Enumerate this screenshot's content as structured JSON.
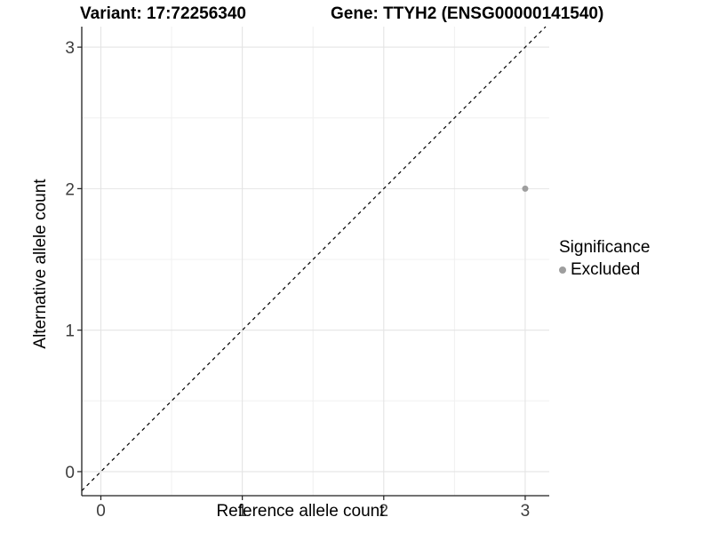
{
  "chart_data": {
    "type": "scatter",
    "titles": [
      "Variant: 17:72256340",
      "Gene: TTYH2 (ENSG00000141540)"
    ],
    "xlabel": "Reference allele count",
    "ylabel": "Alternative allele count",
    "xlim": [
      -0.135,
      3.17
    ],
    "ylim": [
      -0.17,
      3.145
    ],
    "x_ticks": [
      0,
      1,
      2,
      3
    ],
    "y_ticks": [
      0,
      1,
      2,
      3
    ],
    "x_minor_ticks": [
      0.5,
      1.5,
      2.5
    ],
    "y_minor_ticks": [
      0.5,
      1.5,
      2.5
    ],
    "grid": "major+minor",
    "points": [
      {
        "x": 3,
        "y": 2,
        "series": "Excluded"
      }
    ],
    "identity_line": {
      "slope": 1,
      "intercept": 0,
      "linetype": "dashed",
      "color": "#000000"
    },
    "legend": {
      "title": "Significance",
      "position": "right",
      "entries": [
        {
          "label": "Excluded",
          "color": "#9e9e9e"
        }
      ]
    },
    "style": {
      "background": "#ffffff",
      "point_color": "#9e9e9e",
      "axis_color": "#1f1f1f",
      "grid_major_color": "#e4e4e4",
      "grid_minor_color": "#f0f0f0",
      "tick_label_color": "#3d3d3d",
      "text_color": "#000000"
    }
  }
}
